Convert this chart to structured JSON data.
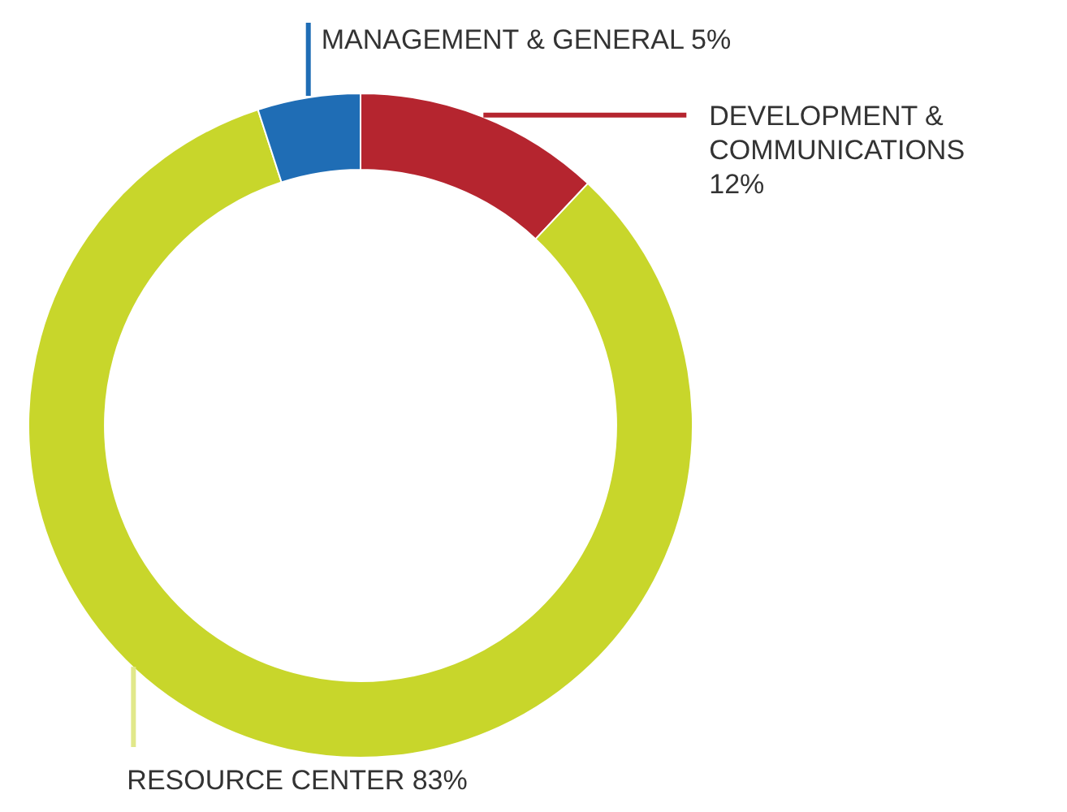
{
  "chart_data": {
    "type": "donut",
    "categories": [
      "DEVELOPMENT & COMMUNICATIONS",
      "RESOURCE CENTER",
      "MANAGEMENT & GENERAL"
    ],
    "values": [
      12,
      83,
      5
    ],
    "value_labels": [
      "12%",
      "83%",
      "5%"
    ],
    "colors": [
      "#b5252f",
      "#c8d62b",
      "#1f6db5"
    ],
    "legend": false
  }
}
